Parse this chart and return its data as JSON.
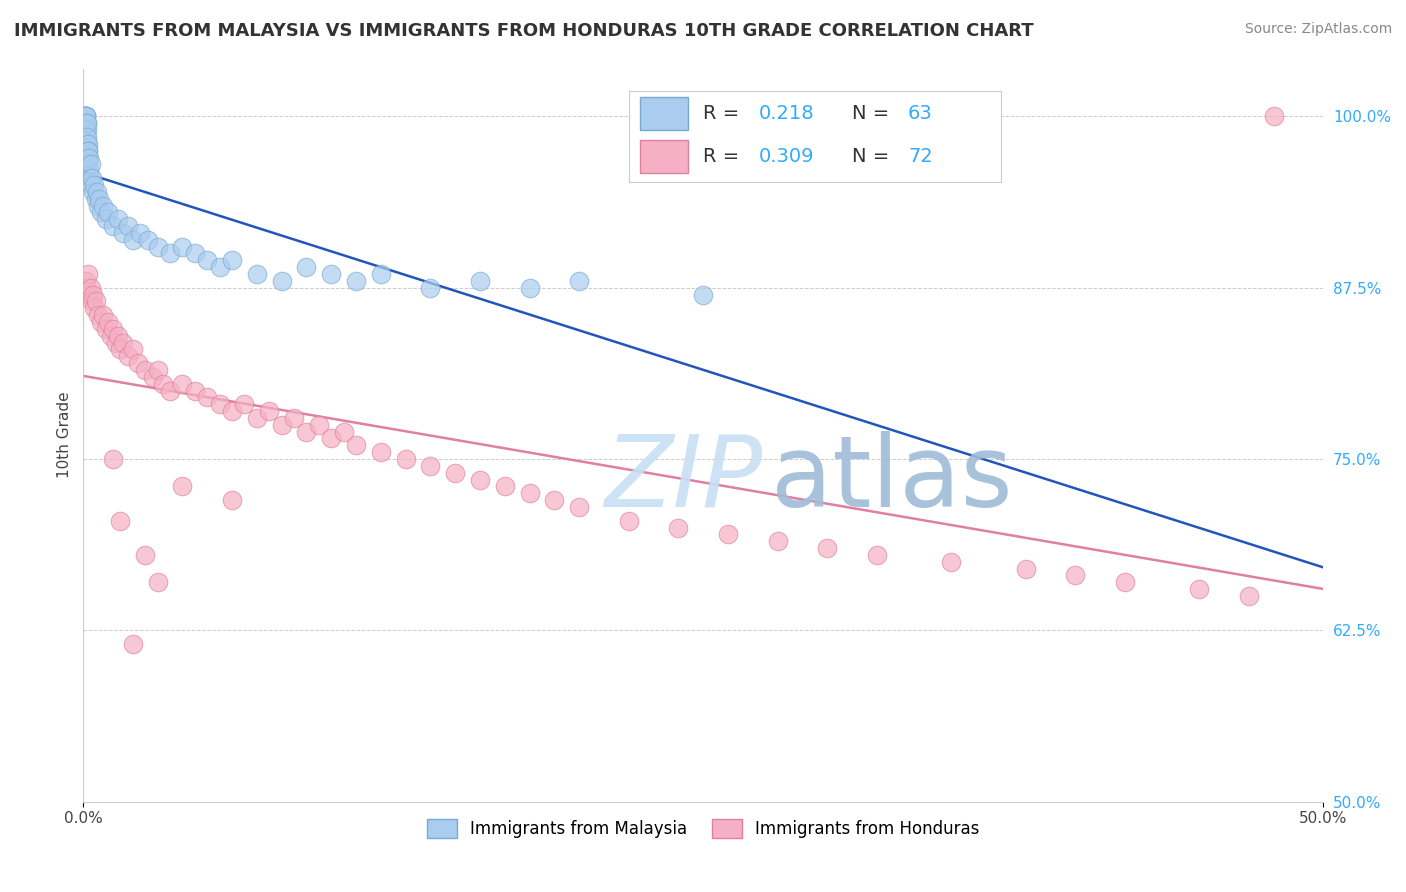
{
  "title": "IMMIGRANTS FROM MALAYSIA VS IMMIGRANTS FROM HONDURAS 10TH GRADE CORRELATION CHART",
  "source": "Source: ZipAtlas.com",
  "ylabel": "10th Grade",
  "xlim": [
    0.0,
    50.0
  ],
  "ylim": [
    50.0,
    103.5
  ],
  "yticks": [
    50.0,
    62.5,
    75.0,
    87.5,
    100.0
  ],
  "malaysia_fill": "#aaccee",
  "malaysia_edge": "#77aad4",
  "malaysia_line_color": "#2255bb",
  "honduras_fill": "#f5b0c5",
  "honduras_edge": "#e080a0",
  "honduras_line_color": "#e080a0",
  "R_malaysia": 0.218,
  "N_malaysia": 63,
  "R_honduras": 0.309,
  "N_honduras": 72,
  "legend_color": "#33aaff",
  "grid_color": "#cccccc",
  "title_color": "#333333",
  "source_color": "#888888",
  "ytick_color": "#33aaff",
  "xtick_color": "#444444",
  "ylabel_color": "#444444",
  "title_fontsize": 13,
  "source_fontsize": 10,
  "tick_fontsize": 11,
  "ylabel_fontsize": 11,
  "legend_fontsize": 14,
  "scatter_size": 180,
  "scatter_alpha": 0.7,
  "malaysia_x": [
    0.05,
    0.07,
    0.08,
    0.09,
    0.1,
    0.1,
    0.11,
    0.11,
    0.12,
    0.12,
    0.13,
    0.13,
    0.14,
    0.14,
    0.15,
    0.15,
    0.16,
    0.17,
    0.18,
    0.19,
    0.2,
    0.21,
    0.22,
    0.25,
    0.27,
    0.3,
    0.32,
    0.35,
    0.4,
    0.45,
    0.5,
    0.55,
    0.6,
    0.65,
    0.7,
    0.8,
    0.9,
    1.0,
    1.2,
    1.4,
    1.6,
    1.8,
    2.0,
    2.3,
    2.6,
    3.0,
    3.5,
    4.0,
    4.5,
    5.0,
    5.5,
    6.0,
    7.0,
    8.0,
    9.0,
    10.0,
    11.0,
    12.0,
    14.0,
    16.0,
    18.0,
    20.0,
    25.0
  ],
  "malaysia_y": [
    100.0,
    100.0,
    100.0,
    100.0,
    100.0,
    99.5,
    100.0,
    99.0,
    100.0,
    98.5,
    99.5,
    98.0,
    99.0,
    97.5,
    99.5,
    97.0,
    98.5,
    98.0,
    97.5,
    97.0,
    97.5,
    96.5,
    96.0,
    97.0,
    95.5,
    96.5,
    95.0,
    95.5,
    94.5,
    95.0,
    94.0,
    94.5,
    93.5,
    94.0,
    93.0,
    93.5,
    92.5,
    93.0,
    92.0,
    92.5,
    91.5,
    92.0,
    91.0,
    91.5,
    91.0,
    90.5,
    90.0,
    90.5,
    90.0,
    89.5,
    89.0,
    89.5,
    88.5,
    88.0,
    89.0,
    88.5,
    88.0,
    88.5,
    87.5,
    88.0,
    87.5,
    88.0,
    87.0
  ],
  "honduras_x": [
    0.1,
    0.15,
    0.2,
    0.25,
    0.3,
    0.35,
    0.4,
    0.45,
    0.5,
    0.6,
    0.7,
    0.8,
    0.9,
    1.0,
    1.1,
    1.2,
    1.3,
    1.4,
    1.5,
    1.6,
    1.8,
    2.0,
    2.2,
    2.5,
    2.8,
    3.0,
    3.2,
    3.5,
    4.0,
    4.5,
    5.0,
    5.5,
    6.0,
    6.5,
    7.0,
    7.5,
    8.0,
    8.5,
    9.0,
    9.5,
    10.0,
    10.5,
    11.0,
    12.0,
    13.0,
    14.0,
    15.0,
    16.0,
    17.0,
    18.0,
    19.0,
    20.0,
    22.0,
    24.0,
    26.0,
    28.0,
    30.0,
    32.0,
    35.0,
    38.0,
    40.0,
    42.0,
    45.0,
    47.0,
    48.0,
    1.5,
    2.5,
    4.0,
    1.2,
    3.0,
    6.0,
    2.0
  ],
  "honduras_y": [
    88.0,
    87.5,
    88.5,
    87.0,
    87.5,
    86.5,
    87.0,
    86.0,
    86.5,
    85.5,
    85.0,
    85.5,
    84.5,
    85.0,
    84.0,
    84.5,
    83.5,
    84.0,
    83.0,
    83.5,
    82.5,
    83.0,
    82.0,
    81.5,
    81.0,
    81.5,
    80.5,
    80.0,
    80.5,
    80.0,
    79.5,
    79.0,
    78.5,
    79.0,
    78.0,
    78.5,
    77.5,
    78.0,
    77.0,
    77.5,
    76.5,
    77.0,
    76.0,
    75.5,
    75.0,
    74.5,
    74.0,
    73.5,
    73.0,
    72.5,
    72.0,
    71.5,
    70.5,
    70.0,
    69.5,
    69.0,
    68.5,
    68.0,
    67.5,
    67.0,
    66.5,
    66.0,
    65.5,
    65.0,
    100.0,
    70.5,
    68.0,
    73.0,
    75.0,
    66.0,
    72.0,
    61.5
  ]
}
